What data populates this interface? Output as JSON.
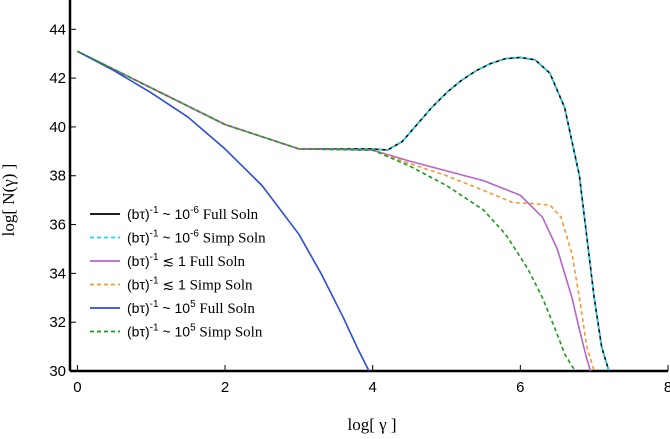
{
  "chart_data": {
    "type": "line",
    "xlabel": "log[ γ ]",
    "ylabel": "log[ N(γ) ]",
    "xlim": [
      -0.1,
      8
    ],
    "ylim": [
      30,
      45.2
    ],
    "xticks": [
      "0",
      "2",
      "4",
      "6",
      "8"
    ],
    "yticks": [
      "30",
      "32",
      "34",
      "36",
      "38",
      "40",
      "42",
      "44"
    ],
    "legend": {
      "placement": "bottom-left",
      "entries": [
        {
          "label": "(bτ)",
          "exp": "-1",
          "rel": " ~ 10",
          "rel_exp": "-6",
          "soln": " Full Soln"
        },
        {
          "label": "(bτ)",
          "exp": "-1",
          "rel": " ~ 10",
          "rel_exp": "-6",
          "soln": " Simp Soln"
        },
        {
          "label": "(bτ)",
          "exp": "-1",
          "rel": " ≲ 1",
          "rel_exp": "",
          "soln": "    Full Soln"
        },
        {
          "label": "(bτ)",
          "exp": "-1",
          "rel": " ≲ 1",
          "rel_exp": "",
          "soln": "     Simp Soln"
        },
        {
          "label": "(bτ)",
          "exp": "-1",
          "rel": " ~ 10",
          "rel_exp": "5",
          "soln": "  Full Soln"
        },
        {
          "label": "(bτ)",
          "exp": "-1",
          "rel": " ~ 10",
          "rel_exp": "5",
          "soln": "  Simp Soln"
        }
      ]
    },
    "series": [
      {
        "color": "#000000",
        "dash": "none",
        "x": [
          0,
          1,
          2,
          3,
          4,
          4.2,
          4.4,
          4.6,
          4.8,
          5.0,
          5.2,
          5.4,
          5.6,
          5.8,
          6.0,
          6.2,
          6.4,
          6.6,
          6.8,
          6.9,
          7.0,
          7.1,
          7.15,
          7.2
        ],
        "y": [
          43.1,
          41.6,
          40.1,
          39.1,
          39.1,
          39.05,
          39.4,
          40.1,
          40.8,
          41.4,
          41.9,
          42.3,
          42.6,
          42.8,
          42.85,
          42.75,
          42.2,
          40.8,
          38.0,
          35.5,
          33.0,
          31.0,
          30.5,
          30.0
        ]
      },
      {
        "color": "#22d3e6",
        "dash": "4,3",
        "x": [
          0,
          1,
          2,
          3,
          4,
          4.2,
          4.4,
          4.6,
          4.8,
          5.0,
          5.2,
          5.4,
          5.6,
          5.8,
          6.0,
          6.2,
          6.4,
          6.6,
          6.8,
          6.9,
          7.0,
          7.1,
          7.15,
          7.2
        ],
        "y": [
          43.1,
          41.6,
          40.1,
          39.1,
          39.1,
          39.05,
          39.4,
          40.1,
          40.8,
          41.4,
          41.9,
          42.3,
          42.6,
          42.8,
          42.85,
          42.75,
          42.2,
          40.8,
          38.0,
          35.5,
          33.0,
          31.0,
          30.5,
          30.0
        ]
      },
      {
        "color": "#b565c8",
        "dash": "none",
        "x": [
          0,
          1,
          2,
          3,
          4,
          4.5,
          5.0,
          5.5,
          6.0,
          6.3,
          6.5,
          6.7,
          6.8,
          6.9,
          6.95
        ],
        "y": [
          43.1,
          41.6,
          40.1,
          39.1,
          39.05,
          38.6,
          38.2,
          37.8,
          37.2,
          36.3,
          35.0,
          33.0,
          31.7,
          30.5,
          30.0
        ]
      },
      {
        "color": "#f2993a",
        "dash": "4,3",
        "x": [
          0,
          1,
          2,
          3,
          4,
          4.5,
          5.0,
          5.5,
          5.9,
          6.2,
          6.4,
          6.55,
          6.7,
          6.8,
          6.9,
          6.95,
          7.0
        ],
        "y": [
          43.1,
          41.6,
          40.1,
          39.1,
          39.05,
          38.5,
          38.0,
          37.4,
          36.9,
          36.85,
          36.8,
          36.3,
          34.8,
          33.0,
          31.0,
          30.5,
          30.0
        ]
      },
      {
        "color": "#2a4cd8",
        "dash": "none",
        "x": [
          0,
          0.5,
          1.0,
          1.5,
          2.0,
          2.5,
          3.0,
          3.3,
          3.6,
          3.8,
          3.95
        ],
        "y": [
          43.1,
          42.3,
          41.4,
          40.4,
          39.1,
          37.6,
          35.6,
          34.0,
          32.2,
          30.9,
          30.0
        ]
      },
      {
        "color": "#1a9a1a",
        "dash": "4,3",
        "x": [
          0,
          1,
          2,
          3,
          4,
          4.5,
          5.0,
          5.5,
          5.8,
          6.1,
          6.3,
          6.5,
          6.6,
          6.7,
          6.75
        ],
        "y": [
          43.1,
          41.6,
          40.1,
          39.1,
          39.05,
          38.4,
          37.6,
          36.6,
          35.6,
          34.2,
          33.0,
          31.5,
          30.7,
          30.2,
          30.0
        ]
      }
    ]
  }
}
